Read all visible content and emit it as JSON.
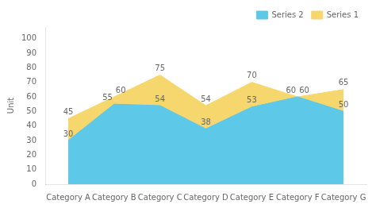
{
  "chart_data": {
    "type": "area",
    "y_label": "Unit",
    "categories": [
      "Category A",
      "Category B",
      "Category C",
      "Category D",
      "Category E",
      "Category F",
      "Category G"
    ],
    "series": [
      {
        "name": "Series 1",
        "color": "#F5D76E",
        "values": [
          45,
          60,
          75,
          54,
          70,
          60,
          65
        ]
      },
      {
        "name": "Series 2",
        "color": "#5DC8E8",
        "values": [
          30,
          55,
          54,
          38,
          53,
          60,
          50
        ]
      }
    ],
    "ylim": [
      0,
      108
    ],
    "yticks": [
      0,
      10,
      20,
      30,
      40,
      50,
      60,
      70,
      80,
      90,
      100
    ],
    "grid": false,
    "legend": "top right",
    "data_labels": true
  }
}
